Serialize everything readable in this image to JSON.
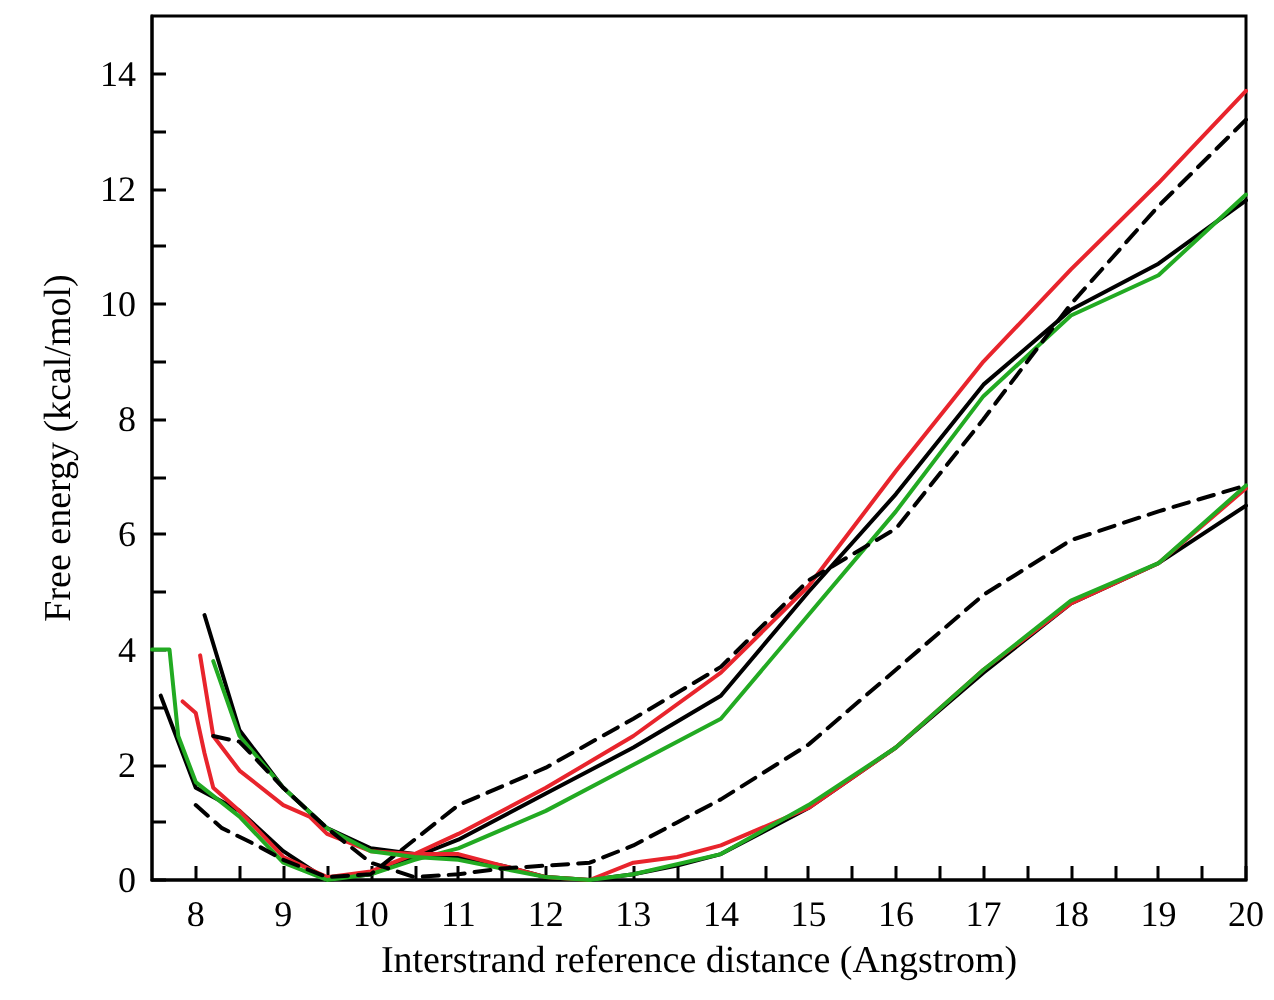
{
  "chart_data": {
    "type": "line",
    "xlabel": "Interstrand reference distance (Angstrom)",
    "ylabel": "Free energy (kcal/mol)",
    "xlim": [
      7.5,
      20
    ],
    "ylim": [
      0,
      15
    ],
    "xticks": [
      8,
      {
        "value": 8.5,
        "label": null
      },
      9,
      {
        "value": 9.5,
        "label": null
      },
      10,
      {
        "value": 10.5,
        "label": null
      },
      11,
      {
        "value": 11.5,
        "label": null
      },
      12,
      {
        "value": 12.5,
        "label": null
      },
      13,
      {
        "value": 13.5,
        "label": null
      },
      14,
      {
        "value": 14.5,
        "label": null
      },
      15,
      {
        "value": 15.5,
        "label": null
      },
      16,
      {
        "value": 16.5,
        "label": null
      },
      17,
      {
        "value": 17.5,
        "label": null
      },
      18,
      {
        "value": 18.5,
        "label": null
      },
      19,
      {
        "value": 19.5,
        "label": null
      },
      20
    ],
    "yticks": [
      0,
      {
        "value": 1,
        "label": null
      },
      2,
      {
        "value": 3,
        "label": null
      },
      4,
      {
        "value": 5,
        "label": null
      },
      6,
      {
        "value": 7,
        "label": null
      },
      8,
      {
        "value": 9,
        "label": null
      },
      10,
      {
        "value": 11,
        "label": null
      },
      12,
      {
        "value": 13,
        "label": null
      },
      14
    ],
    "grid": false,
    "marker": "none",
    "series": [
      {
        "color": "#000000",
        "line_style": "solid",
        "x": [
          7.6,
          8.0,
          8.5,
          9.0,
          9.5,
          10.0,
          10.5,
          11,
          12,
          13,
          14,
          15,
          16,
          17,
          18,
          19,
          20
        ],
        "values": [
          3.2,
          1.6,
          1.2,
          0.5,
          0.0,
          0.1,
          0.4,
          0.7,
          1.5,
          2.3,
          3.2,
          5.0,
          6.7,
          8.6,
          9.9,
          10.7,
          11.8
        ]
      },
      {
        "color": "#e8242c",
        "line_style": "solid",
        "x": [
          7.85,
          8.0,
          8.1,
          8.2,
          8.5,
          9.0,
          9.5,
          10.0,
          10.5,
          11,
          12,
          13,
          14,
          15,
          16,
          17,
          18,
          19,
          20
        ],
        "values": [
          3.1,
          2.9,
          2.2,
          1.6,
          1.2,
          0.4,
          0.05,
          0.15,
          0.45,
          0.8,
          1.6,
          2.5,
          3.6,
          5.1,
          7.1,
          9.0,
          10.6,
          12.1,
          13.7
        ]
      },
      {
        "color": "#22aa22",
        "line_style": "solid",
        "x": [
          7.5,
          7.7,
          7.8,
          8.0,
          8.5,
          9.0,
          9.5,
          10.0,
          10.5,
          11,
          12,
          13,
          14,
          15,
          16,
          17,
          18,
          19,
          20
        ],
        "values": [
          4.0,
          4.0,
          2.5,
          1.7,
          1.1,
          0.3,
          0.0,
          0.1,
          0.35,
          0.55,
          1.2,
          2.0,
          2.8,
          4.6,
          6.4,
          8.4,
          9.8,
          10.5,
          11.9
        ]
      },
      {
        "color": "#000000",
        "line_style": "dashed",
        "x": [
          8.0,
          8.3,
          8.7,
          9.0,
          9.5,
          10.0,
          10.5,
          11,
          12,
          13,
          14,
          15,
          16,
          17,
          18,
          19,
          20
        ],
        "values": [
          1.3,
          0.9,
          0.6,
          0.35,
          0.05,
          0.1,
          0.7,
          1.3,
          1.95,
          2.8,
          3.7,
          5.2,
          6.1,
          8.0,
          10.0,
          11.7,
          13.2
        ]
      },
      {
        "color": "#000000",
        "line_style": "solid",
        "x": [
          8.1,
          8.5,
          9.0,
          9.5,
          10.0,
          10.5,
          11,
          11.5,
          12,
          12.5,
          13,
          13.5,
          14,
          15,
          16,
          17,
          18,
          19,
          20
        ],
        "values": [
          4.6,
          2.6,
          1.6,
          0.9,
          0.55,
          0.45,
          0.4,
          0.25,
          0.05,
          0.0,
          0.1,
          0.25,
          0.45,
          1.25,
          2.3,
          3.6,
          4.8,
          5.5,
          6.5
        ]
      },
      {
        "color": "#e8242c",
        "line_style": "solid",
        "x": [
          8.05,
          8.2,
          8.5,
          9.0,
          9.3,
          9.5,
          10.0,
          10.5,
          11,
          11.5,
          12,
          12.5,
          13,
          13.5,
          14,
          15,
          16,
          17,
          18,
          19,
          20
        ],
        "values": [
          3.9,
          2.5,
          1.9,
          1.3,
          1.1,
          0.8,
          0.5,
          0.45,
          0.45,
          0.25,
          0.05,
          0.0,
          0.3,
          0.4,
          0.6,
          1.25,
          2.3,
          3.65,
          4.8,
          5.5,
          6.8
        ]
      },
      {
        "color": "#22aa22",
        "line_style": "solid",
        "x": [
          8.2,
          8.5,
          9.0,
          9.5,
          10.0,
          10.5,
          11,
          11.5,
          12,
          12.5,
          13,
          14,
          15,
          16,
          17,
          18,
          19,
          20
        ],
        "values": [
          3.8,
          2.5,
          1.6,
          0.9,
          0.5,
          0.4,
          0.35,
          0.2,
          0.05,
          0.0,
          0.1,
          0.45,
          1.3,
          2.3,
          3.65,
          4.85,
          5.5,
          6.85
        ]
      },
      {
        "color": "#000000",
        "line_style": "dashed",
        "x": [
          8.2,
          8.5,
          9.0,
          9.5,
          10.0,
          10.5,
          11,
          11.5,
          12,
          12.5,
          13,
          13.5,
          14,
          15,
          16,
          17,
          18,
          19,
          20
        ],
        "values": [
          2.5,
          2.4,
          1.6,
          0.9,
          0.3,
          0.05,
          0.1,
          0.2,
          0.25,
          0.3,
          0.6,
          1.0,
          1.4,
          2.35,
          3.65,
          4.95,
          5.9,
          6.4,
          6.85
        ]
      }
    ]
  }
}
